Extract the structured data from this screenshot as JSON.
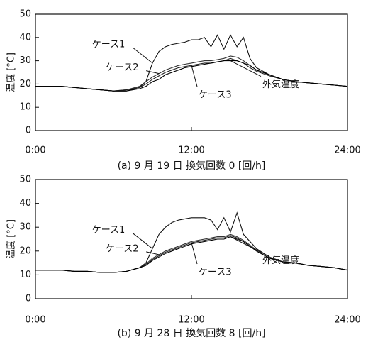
{
  "chart_data": [
    {
      "type": "line",
      "caption": "(a) 9 月 19 日 換気回数 0 [回/h]",
      "y_label": "温度 [°C]",
      "x": [
        0,
        1,
        2,
        3,
        4,
        5,
        6,
        7,
        8,
        8.5,
        9,
        9.5,
        10,
        10.5,
        11,
        11.5,
        12,
        12.5,
        13,
        13.5,
        14,
        14.5,
        15,
        15.5,
        16,
        16.5,
        17,
        18,
        19,
        20,
        21,
        22,
        23,
        24
      ],
      "xlim": [
        0,
        24
      ],
      "xticks": [
        {
          "value": 0,
          "label": "0:00"
        },
        {
          "value": 12,
          "label": "12:00"
        },
        {
          "value": 24,
          "label": "24:00"
        }
      ],
      "ylim": [
        0,
        50
      ],
      "yticks": [
        0,
        10,
        20,
        30,
        40,
        50
      ],
      "series": [
        {
          "name": "ケース1",
          "color": "#111111",
          "values": [
            19,
            19,
            19,
            18.5,
            18,
            17.5,
            17,
            17,
            18.5,
            21,
            29,
            34,
            36,
            37,
            37.5,
            38,
            39,
            39,
            40,
            36,
            41,
            35,
            41,
            36,
            40,
            31,
            27,
            24,
            22,
            21,
            20.5,
            20,
            19.5,
            19
          ]
        },
        {
          "name": "ケース2",
          "color": "#333333",
          "values": [
            19,
            19,
            19,
            18.5,
            18,
            17.5,
            17,
            17.5,
            19,
            21,
            23,
            24.5,
            26,
            27,
            28,
            28.5,
            29,
            29.5,
            30,
            30,
            30.5,
            31,
            32,
            31.5,
            30,
            28,
            26,
            24,
            22,
            21,
            20.5,
            20,
            19.5,
            19
          ]
        },
        {
          "name": "ケース3",
          "color": "#222222",
          "values": [
            19,
            19,
            19,
            18.5,
            18,
            17.5,
            17,
            17.5,
            18.5,
            20,
            22,
            23.5,
            25,
            26,
            27,
            27.5,
            28,
            28.5,
            29,
            29,
            29.5,
            30,
            31,
            30,
            29,
            27,
            25.5,
            23.5,
            22,
            21,
            20.5,
            20,
            19.5,
            19
          ]
        },
        {
          "name": "外気温度",
          "color": "#000000",
          "values": [
            19,
            19,
            19,
            18.5,
            18,
            17.5,
            17,
            17,
            18,
            19,
            21,
            22,
            24,
            25,
            26,
            27,
            27.5,
            28,
            28.5,
            29,
            29.5,
            30,
            30,
            30,
            29,
            28,
            26,
            24,
            22,
            21,
            20.5,
            20,
            19.5,
            19
          ]
        }
      ]
    },
    {
      "type": "line",
      "caption": "(b) 9 月 28 日 換気回数 8 [回/h]",
      "y_label": "温度 [°C]",
      "x": [
        0,
        1,
        2,
        3,
        4,
        5,
        6,
        7,
        8,
        8.5,
        9,
        9.5,
        10,
        10.5,
        11,
        11.5,
        12,
        12.5,
        13,
        13.5,
        14,
        14.5,
        15,
        15.5,
        16,
        16.5,
        17,
        18,
        19,
        20,
        21,
        22,
        23,
        24
      ],
      "xlim": [
        0,
        24
      ],
      "xticks": [
        {
          "value": 0,
          "label": "0:00"
        },
        {
          "value": 12,
          "label": "12:00"
        },
        {
          "value": 24,
          "label": "24:00"
        }
      ],
      "ylim": [
        0,
        50
      ],
      "yticks": [
        0,
        10,
        20,
        30,
        40,
        50
      ],
      "series": [
        {
          "name": "ケース1",
          "color": "#111111",
          "values": [
            12,
            12,
            12,
            11.5,
            11.5,
            11,
            11,
            11.5,
            13,
            15,
            21,
            27,
            30,
            32,
            33,
            33.5,
            34,
            34,
            34,
            33,
            29,
            34,
            28,
            36,
            27,
            24,
            21,
            17.5,
            15.5,
            15,
            14,
            13.5,
            13,
            12
          ]
        },
        {
          "name": "ケース2",
          "color": "#333333",
          "values": [
            12,
            12,
            12,
            11.5,
            11.5,
            11,
            11,
            11.5,
            13,
            14.5,
            17,
            18.5,
            20,
            21,
            22,
            23,
            24,
            24.5,
            25,
            25.5,
            26,
            26,
            27,
            26,
            24.5,
            22.5,
            20.5,
            17.5,
            15.5,
            15,
            14,
            13.5,
            13,
            12
          ]
        },
        {
          "name": "ケース3",
          "color": "#222222",
          "values": [
            12,
            12,
            12,
            11.5,
            11.5,
            11,
            11,
            11.5,
            13,
            14,
            16.5,
            18,
            19.5,
            20.5,
            21.5,
            22.5,
            23.5,
            24,
            24.5,
            25,
            25.5,
            25.5,
            26.5,
            25.5,
            24,
            22,
            20,
            17,
            15.5,
            15,
            14,
            13.5,
            13,
            12
          ]
        },
        {
          "name": "外気温度",
          "color": "#000000",
          "values": [
            12,
            12,
            12,
            11.5,
            11.5,
            11,
            11,
            11.5,
            13,
            14,
            16,
            17.5,
            19,
            20,
            21,
            22,
            23,
            23.5,
            24,
            24.5,
            25,
            25,
            26,
            25,
            24,
            22,
            20,
            17,
            15.5,
            15,
            14,
            13.5,
            13,
            12
          ]
        }
      ]
    }
  ]
}
